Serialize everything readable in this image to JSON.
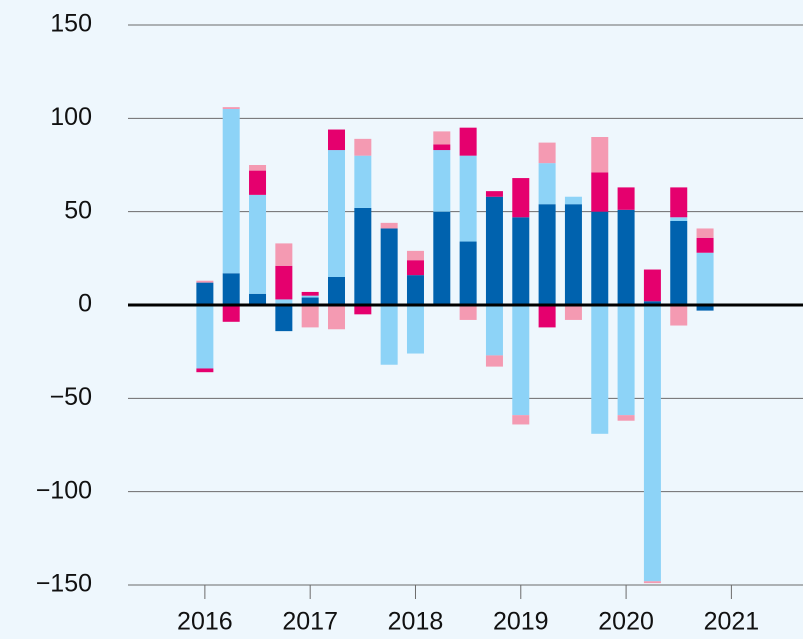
{
  "chart_data": {
    "type": "bar",
    "x": [
      2016,
      2016.25,
      2016.5,
      2016.75,
      2017,
      2017.25,
      2017.5,
      2017.75,
      2018,
      2018.25,
      2018.5,
      2018.75,
      2019,
      2019.25,
      2019.5,
      2019.75,
      2020,
      2020.25,
      2020.5,
      2020.75
    ],
    "series": [
      {
        "color": "#0062ae",
        "values": [
          12,
          17,
          6,
          -14,
          4,
          15,
          52,
          41,
          16,
          50,
          34,
          58,
          47,
          54,
          54,
          50,
          51,
          2,
          45,
          -3
        ]
      },
      {
        "color": "#8dd3f7",
        "values": [
          -34,
          88,
          53,
          3,
          1,
          68,
          28,
          -32,
          -26,
          33,
          46,
          -27,
          -59,
          22,
          4,
          -69,
          -59,
          -148,
          2,
          28
        ]
      },
      {
        "color": "#e5006e",
        "values": [
          -2,
          -9,
          13,
          18,
          2,
          11,
          -5,
          0,
          8,
          3,
          15,
          3,
          21,
          -12,
          0,
          21,
          12,
          17,
          16,
          8
        ]
      },
      {
        "color": "#f49ab2",
        "values": [
          1,
          1,
          3,
          12,
          -12,
          -13,
          9,
          3,
          5,
          7,
          -8,
          -6,
          -5,
          11,
          -8,
          19,
          -3,
          -1,
          -11,
          5
        ]
      }
    ],
    "xlim": [
      2015.27,
      2021.68
    ],
    "xticks": [
      2016,
      2017,
      2018,
      2019,
      2020,
      2021
    ],
    "ylim": [
      -150,
      150
    ],
    "yticks": [
      {
        "value": -150,
        "label": "−150"
      },
      {
        "value": -100,
        "label": "−100"
      },
      {
        "value": -50,
        "label": "−50"
      },
      0,
      50,
      100,
      150
    ],
    "grid": true
  }
}
